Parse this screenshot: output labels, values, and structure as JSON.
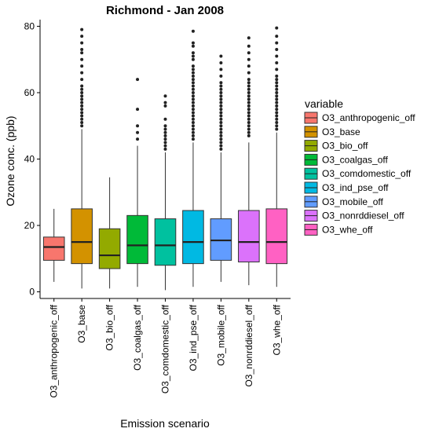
{
  "chart_data": {
    "type": "box",
    "title": "Richmond  -  Jan 2008",
    "xlabel": "Emission scenario",
    "ylabel": "Ozone conc. (ppb)",
    "ylim": [
      -2,
      82
    ],
    "yticks": [
      0,
      20,
      40,
      60,
      80
    ],
    "grid": false,
    "legend_title": "variable",
    "legend_position": "right",
    "categories": [
      "O3_anthropogenic_off",
      "O3_base",
      "O3_bio_off",
      "O3_coalgas_off",
      "O3_comdomestic_off",
      "O3_ind_pse_off",
      "O3_mobile_off",
      "O3_nonrddiesel_off",
      "O3_whe_off"
    ],
    "colors": [
      "#F8766D",
      "#D39200",
      "#93AA00",
      "#00BA38",
      "#00C19F",
      "#00B9E3",
      "#619CFF",
      "#DB72FB",
      "#FF61C3"
    ],
    "boxes": [
      {
        "min": 3,
        "q1": 9.5,
        "median": 13.5,
        "q3": 16.5,
        "max": 25,
        "outliers": []
      },
      {
        "min": 1,
        "q1": 8.5,
        "median": 15,
        "q3": 25,
        "max": 49,
        "outliers": [
          50,
          51,
          52,
          53,
          54,
          55,
          56,
          57,
          58,
          59,
          60,
          61,
          62,
          64,
          66,
          68,
          70,
          72,
          73,
          75,
          77,
          79
        ]
      },
      {
        "min": 1,
        "q1": 7,
        "median": 11,
        "q3": 19,
        "max": 34.5,
        "outliers": []
      },
      {
        "min": 1.5,
        "q1": 8.5,
        "median": 14,
        "q3": 23,
        "max": 44,
        "outliers": [
          46,
          48,
          50,
          55,
          64
        ]
      },
      {
        "min": 0.5,
        "q1": 8,
        "median": 14,
        "q3": 22,
        "max": 42,
        "outliers": [
          43,
          44,
          45,
          46,
          47,
          48,
          49,
          50,
          52,
          56,
          57,
          59
        ]
      },
      {
        "min": 1.5,
        "q1": 8.5,
        "median": 15,
        "q3": 24.5,
        "max": 45,
        "outliers": [
          46,
          47,
          48,
          49,
          50,
          51,
          52,
          53,
          54,
          55,
          56,
          57,
          58,
          59,
          60,
          61,
          62,
          63,
          64,
          65,
          66,
          67,
          68,
          70,
          71,
          72,
          74,
          75,
          78.5
        ]
      },
      {
        "min": 3,
        "q1": 9.5,
        "median": 15.5,
        "q3": 22,
        "max": 42,
        "outliers": [
          43,
          44,
          45,
          46,
          47,
          48,
          49,
          50,
          51,
          52,
          53,
          54,
          55,
          56,
          57,
          58,
          59,
          60,
          61,
          62,
          63,
          65,
          67,
          69,
          71
        ]
      },
      {
        "min": 2,
        "q1": 9,
        "median": 15,
        "q3": 24.5,
        "max": 45,
        "outliers": [
          47,
          48,
          49,
          50,
          51,
          52,
          53,
          54,
          55,
          56,
          57,
          58,
          59,
          60,
          61,
          62,
          63,
          64,
          66,
          68,
          70,
          72,
          74,
          76.5
        ]
      },
      {
        "min": 1.5,
        "q1": 8.5,
        "median": 15,
        "q3": 25,
        "max": 48,
        "outliers": [
          49,
          50,
          51,
          52,
          53,
          54,
          55,
          56,
          57,
          58,
          59,
          60,
          61,
          62,
          63,
          64,
          65,
          67,
          69,
          71,
          73,
          75,
          77,
          79.5
        ]
      }
    ]
  }
}
